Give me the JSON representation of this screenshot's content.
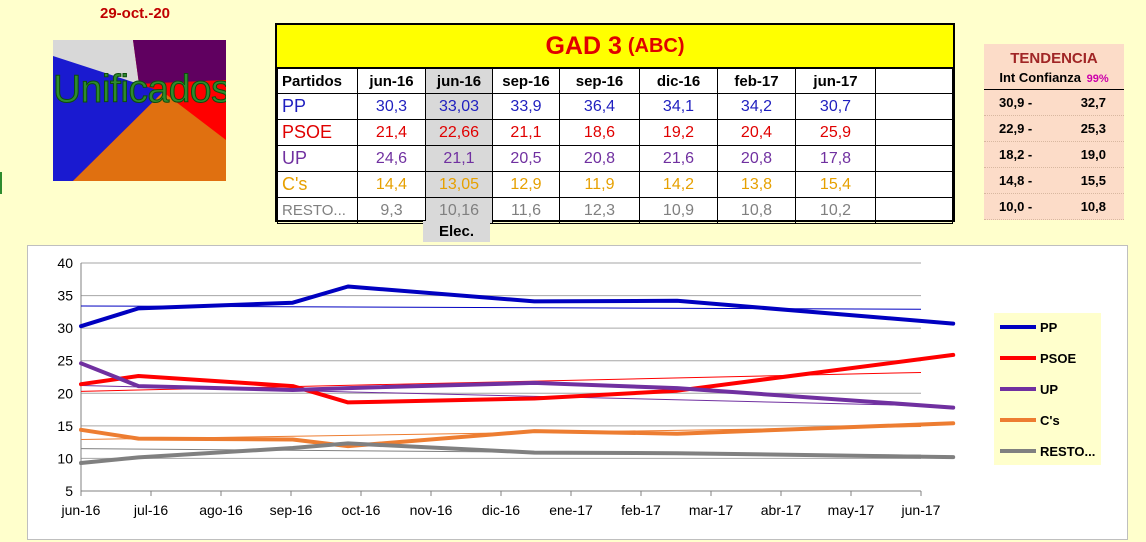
{
  "date": "29-oct.-20",
  "logo": {
    "text": "Unificados"
  },
  "table": {
    "title": "GAD 3",
    "title_suffix": "(ABC)",
    "header": [
      "Partidos",
      "jun-16",
      "jun-16",
      "sep-16",
      "sep-16",
      "dic-16",
      "feb-17",
      "jun-17"
    ],
    "rows": [
      {
        "name": "PP",
        "color": "#1f1fbf",
        "values": [
          "30,3",
          "33,03",
          "33,9",
          "36,4",
          "34,1",
          "34,2",
          "30,7"
        ]
      },
      {
        "name": "PSOE",
        "color": "#e00000",
        "values": [
          "21,4",
          "22,66",
          "21,1",
          "18,6",
          "19,2",
          "20,4",
          "25,9"
        ]
      },
      {
        "name": "UP",
        "color": "#7030a0",
        "values": [
          "24,6",
          "21,1",
          "20,5",
          "20,8",
          "21,6",
          "20,8",
          "17,8"
        ]
      },
      {
        "name": "C's",
        "color": "#e6a000",
        "values": [
          "14,4",
          "13,05",
          "12,9",
          "11,9",
          "14,2",
          "13,8",
          "15,4"
        ]
      },
      {
        "name": "RESTO...",
        "color": "#808080",
        "values": [
          "9,3",
          "10,16",
          "11,6",
          "12,3",
          "10,9",
          "10,8",
          "10,2"
        ]
      }
    ],
    "elec_label": "Elec."
  },
  "trend": {
    "title": "TENDENCIA",
    "subtitle": "Int Confianza",
    "confidence": "99%",
    "rows": [
      {
        "low": "30,9 -",
        "high": "32,7"
      },
      {
        "low": "22,9 -",
        "high": "25,3"
      },
      {
        "low": "18,2 -",
        "high": "19,0"
      },
      {
        "low": "14,8 -",
        "high": "15,5"
      },
      {
        "low": "10,0 -",
        "high": "10,8"
      }
    ]
  },
  "chart_data": {
    "type": "line",
    "x_ticks": [
      "jun-16",
      "jul-16",
      "ago-16",
      "sep-16",
      "oct-16",
      "nov-16",
      "dic-16",
      "ene-17",
      "feb-17",
      "mar-17",
      "abr-17",
      "may-17",
      "jun-17"
    ],
    "ylim": [
      5,
      40
    ],
    "yticks": [
      5,
      10,
      15,
      20,
      25,
      30,
      35,
      40
    ],
    "grid": true,
    "legend_position": "right",
    "x": [
      "2016-06-01",
      "2016-06-26",
      "2016-09-01",
      "2016-09-25",
      "2016-12-15",
      "2017-02-15",
      "2017-06-15"
    ],
    "series": [
      {
        "name": "PP",
        "color": "#0000c0",
        "values": [
          30.3,
          33.03,
          33.9,
          36.4,
          34.1,
          34.2,
          30.7
        ],
        "trend": [
          33.4,
          32.9
        ]
      },
      {
        "name": "PSOE",
        "color": "#ff0000",
        "values": [
          21.4,
          22.66,
          21.1,
          18.6,
          19.2,
          20.4,
          25.9
        ],
        "trend": [
          20.3,
          23.2
        ]
      },
      {
        "name": "UP",
        "color": "#7030a0",
        "values": [
          24.6,
          21.1,
          20.5,
          20.8,
          21.6,
          20.8,
          17.8
        ],
        "trend": [
          21.2,
          18.1
        ]
      },
      {
        "name": "C's",
        "color": "#ed7d31",
        "values": [
          14.4,
          13.05,
          12.9,
          11.9,
          14.2,
          13.8,
          15.4
        ],
        "trend": [
          12.9,
          14.9
        ]
      },
      {
        "name": "RESTO...",
        "color": "#808080",
        "values": [
          9.3,
          10.16,
          11.6,
          12.3,
          10.9,
          10.8,
          10.2
        ],
        "trend": [
          11.5,
          10.5
        ]
      }
    ]
  }
}
